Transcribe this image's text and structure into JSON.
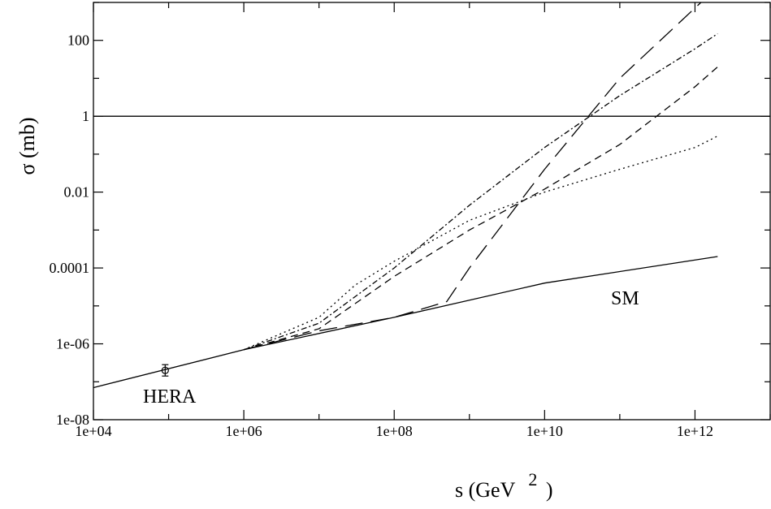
{
  "chart_data": {
    "type": "line",
    "xscale": "log",
    "yscale": "log",
    "xlabel": "s (GeV",
    "xlabel_sup": "2",
    "xlabel_close": ")",
    "ylabel": "σ (mb)",
    "xlim": [
      10000,
      10000000000000.0
    ],
    "ylim": [
      1e-08,
      1000
    ],
    "x_ticks": [
      "1e+04",
      "1e+06",
      "1e+08",
      "1e+10",
      "1e+12"
    ],
    "y_ticks": [
      "1e-08",
      "1e-06",
      "0.0001",
      "0.01",
      "1",
      "100"
    ],
    "grid": false,
    "reference_line": {
      "y": 1,
      "style": "solid"
    },
    "series": [
      {
        "name": "SM",
        "style": "solid",
        "x": [
          10000,
          1000000.0,
          100000000.0,
          10000000000.0,
          2000000000000.0
        ],
        "y": [
          7e-08,
          7e-07,
          5e-06,
          4e-05,
          0.0002
        ]
      },
      {
        "style": "long-dash",
        "x": [
          1000000.0,
          10000000.0,
          100000000.0,
          500000000.0,
          1000000000.0,
          10000000000.0,
          100000000000.0,
          1200000000000.0
        ],
        "y": [
          7e-07,
          2.2e-06,
          5e-06,
          1.3e-05,
          0.0001,
          0.04,
          10,
          1000
        ]
      },
      {
        "style": "dash-dot",
        "x": [
          1000000.0,
          10000000.0,
          100000000.0,
          1000000000.0,
          10000000000.0,
          100000000000.0,
          1000000000000.0,
          2000000000000.0
        ],
        "y": [
          7e-07,
          3.5e-06,
          0.0001,
          0.0045,
          0.15,
          3.5,
          60,
          150
        ]
      },
      {
        "style": "dashed",
        "x": [
          1000000.0,
          10000000.0,
          100000000.0,
          1000000000.0,
          10000000000.0,
          100000000000.0,
          1000000000000.0,
          2000000000000.0
        ],
        "y": [
          7e-07,
          2.5e-06,
          6e-05,
          0.001,
          0.012,
          0.18,
          6,
          20
        ]
      },
      {
        "style": "dotted",
        "x": [
          1000000.0,
          10000000.0,
          30000000.0,
          100000000.0,
          1000000000.0,
          10000000000.0,
          100000000000.0,
          1000000000000.0,
          2000000000000.0
        ],
        "y": [
          7e-07,
          5e-06,
          3.5e-05,
          0.00015,
          0.0018,
          0.01,
          0.04,
          0.15,
          0.3
        ]
      }
    ],
    "data_points": [
      {
        "label": "HERA",
        "x": 90000,
        "y": 2e-07
      }
    ],
    "annotations": [
      {
        "text": "SM",
        "x": 300000000000.0,
        "y": 3e-06
      },
      {
        "text": "HERA",
        "x": 80000,
        "y": 5e-08
      }
    ]
  }
}
